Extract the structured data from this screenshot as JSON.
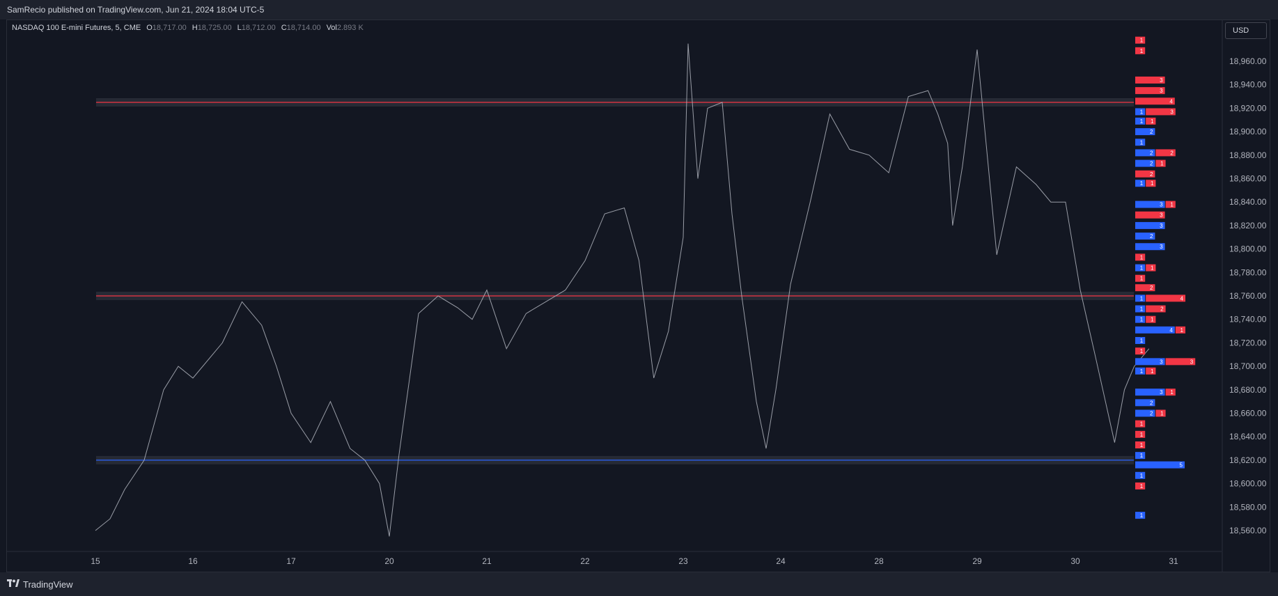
{
  "header": {
    "publish_text": "SamRecio published on TradingView.com, Jun 21, 2024 18:04 UTC-5"
  },
  "footer": {
    "brand": "TradingView"
  },
  "currency_button": "USD",
  "legend": {
    "symbol": "NASDAQ 100 E-mini Futures, 5, CME",
    "open_label": "O",
    "open": "18,717.00",
    "high_label": "H",
    "high": "18,725.00",
    "low_label": "L",
    "low": "18,712.00",
    "close_label": "C",
    "close": "18,714.00",
    "vol_label": "Vol",
    "vol": "2.893 K"
  },
  "colors": {
    "background": "#131722",
    "price_line": "#b2b5be",
    "buy": "#2962ff",
    "sell": "#f23645",
    "level_fill": "#363a45"
  },
  "chart_data": {
    "type": "line",
    "title": "",
    "y_axis": {
      "ticks": [
        18960,
        18940,
        18920,
        18900,
        18880,
        18860,
        18840,
        18820,
        18800,
        18780,
        18760,
        18740,
        18720,
        18700,
        18680,
        18660,
        18640,
        18620,
        18600,
        18580,
        18560
      ],
      "tick_labels": [
        "18,960.00",
        "18,940.00",
        "18,920.00",
        "18,900.00",
        "18,880.00",
        "18,860.00",
        "18,840.00",
        "18,820.00",
        "18,800.00",
        "18,780.00",
        "18,760.00",
        "18,740.00",
        "18,720.00",
        "18,700.00",
        "18,680.00",
        "18,660.00",
        "18,640.00",
        "18,620.00",
        "18,600.00",
        "18,580.00",
        "18,560.00"
      ],
      "range": [
        18543,
        18985
      ]
    },
    "x_axis": {
      "labels": [
        "15",
        "16",
        "17",
        "20",
        "21",
        "22",
        "23",
        "24",
        "28",
        "29",
        "30",
        "31"
      ]
    },
    "series": [
      {
        "x": [
          0,
          0.15,
          0.3,
          0.5,
          0.7,
          0.85,
          1.0,
          1.3,
          1.5,
          1.7,
          1.85,
          2.0,
          2.2,
          2.4,
          2.6,
          2.75,
          2.9,
          3.0,
          3.1,
          3.3,
          3.5,
          3.7,
          3.85,
          4.0,
          4.2,
          4.4,
          4.6,
          4.8,
          5.0,
          5.2,
          5.4,
          5.55,
          5.7,
          5.85,
          6.0,
          6.05,
          6.15,
          6.25,
          6.4,
          6.5,
          6.6,
          6.75,
          6.85,
          6.95,
          7.1,
          7.3,
          7.5,
          7.7,
          7.9,
          8.1,
          8.3,
          8.5,
          8.6,
          8.7,
          8.75,
          8.85,
          9.0,
          9.2,
          9.4,
          9.6,
          9.75,
          9.9,
          10.0,
          10.05,
          10.2,
          10.4,
          10.5,
          10.6,
          10.75
        ],
        "y": [
          18560,
          18570,
          18595,
          18620,
          18680,
          18700,
          18690,
          18720,
          18755,
          18735,
          18700,
          18660,
          18635,
          18670,
          18630,
          18620,
          18600,
          18555,
          18625,
          18745,
          18760,
          18750,
          18740,
          18765,
          18715,
          18745,
          18755,
          18765,
          18790,
          18830,
          18835,
          18790,
          18690,
          18730,
          18810,
          18975,
          18860,
          18920,
          18925,
          18830,
          18760,
          18670,
          18630,
          18680,
          18770,
          18840,
          18915,
          18885,
          18880,
          18865,
          18930,
          18935,
          18915,
          18890,
          18820,
          18870,
          18970,
          18795,
          18870,
          18855,
          18840,
          18840,
          18790,
          18765,
          18710,
          18635,
          18680,
          18700,
          18715
        ]
      }
    ],
    "levels": [
      {
        "price": 18925,
        "color": "#f23645"
      },
      {
        "price": 18760,
        "color": "#f23645"
      },
      {
        "price": 18620,
        "color": "#2962ff"
      }
    ],
    "volume_profile": [
      {
        "price": 18978,
        "buy": 0,
        "sell": 1
      },
      {
        "price": 18969,
        "buy": 0,
        "sell": 1
      },
      {
        "price": 18944,
        "buy": 0,
        "sell": 3
      },
      {
        "price": 18935,
        "buy": 0,
        "sell": 3
      },
      {
        "price": 18926,
        "buy": 0,
        "sell": 4
      },
      {
        "price": 18917,
        "buy": 1,
        "sell": 3
      },
      {
        "price": 18909,
        "buy": 1,
        "sell": 1
      },
      {
        "price": 18900,
        "buy": 2,
        "sell": 0
      },
      {
        "price": 18891,
        "buy": 1,
        "sell": 0
      },
      {
        "price": 18882,
        "buy": 2,
        "sell": 2
      },
      {
        "price": 18873,
        "buy": 2,
        "sell": 1
      },
      {
        "price": 18864,
        "buy": 0,
        "sell": 2
      },
      {
        "price": 18856,
        "buy": 1,
        "sell": 1
      },
      {
        "price": 18838,
        "buy": 3,
        "sell": 1
      },
      {
        "price": 18829,
        "buy": 0,
        "sell": 3
      },
      {
        "price": 18820,
        "buy": 3,
        "sell": 0
      },
      {
        "price": 18811,
        "buy": 2,
        "sell": 0
      },
      {
        "price": 18802,
        "buy": 3,
        "sell": 0
      },
      {
        "price": 18793,
        "buy": 0,
        "sell": 1
      },
      {
        "price": 18784,
        "buy": 1,
        "sell": 1
      },
      {
        "price": 18775,
        "buy": 0,
        "sell": 1
      },
      {
        "price": 18767,
        "buy": 0,
        "sell": 2
      },
      {
        "price": 18758,
        "buy": 1,
        "sell": 4
      },
      {
        "price": 18749,
        "buy": 1,
        "sell": 2
      },
      {
        "price": 18740,
        "buy": 1,
        "sell": 1
      },
      {
        "price": 18731,
        "buy": 4,
        "sell": 1
      },
      {
        "price": 18722,
        "buy": 1,
        "sell": 0
      },
      {
        "price": 18713,
        "buy": 0,
        "sell": 1
      },
      {
        "price": 18704,
        "buy": 3,
        "sell": 3
      },
      {
        "price": 18696,
        "buy": 1,
        "sell": 1
      },
      {
        "price": 18678,
        "buy": 3,
        "sell": 1
      },
      {
        "price": 18669,
        "buy": 2,
        "sell": 0
      },
      {
        "price": 18660,
        "buy": 2,
        "sell": 1
      },
      {
        "price": 18651,
        "buy": 0,
        "sell": 1
      },
      {
        "price": 18642,
        "buy": 0,
        "sell": 1
      },
      {
        "price": 18633,
        "buy": 0,
        "sell": 1
      },
      {
        "price": 18624,
        "buy": 1,
        "sell": 0
      },
      {
        "price": 18616,
        "buy": 5,
        "sell": 0
      },
      {
        "price": 18607,
        "buy": 1,
        "sell": 0
      },
      {
        "price": 18598,
        "buy": 0,
        "sell": 1
      },
      {
        "price": 18573,
        "buy": 1,
        "sell": 0
      }
    ]
  }
}
